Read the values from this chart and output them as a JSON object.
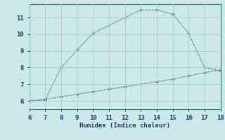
{
  "xlabel": "Humidex (Indice chaleur)",
  "ylabel": "",
  "background_color": "#cce8e8",
  "line_color": "#2e7b6e",
  "grid_color": "#aacfcf",
  "xlim": [
    6,
    18
  ],
  "ylim": [
    5.5,
    11.8
  ],
  "xticks": [
    6,
    7,
    8,
    9,
    10,
    11,
    12,
    13,
    14,
    15,
    16,
    17,
    18
  ],
  "yticks": [
    6,
    7,
    8,
    9,
    10,
    11
  ],
  "line1_x": [
    6,
    7,
    8,
    9,
    10,
    12,
    13,
    14,
    15,
    16,
    17,
    18
  ],
  "line1_y": [
    6.0,
    6.05,
    8.0,
    9.05,
    10.05,
    11.0,
    11.45,
    11.45,
    11.2,
    10.05,
    8.0,
    7.8
  ],
  "line2_x": [
    6,
    7,
    8,
    9,
    10,
    11,
    12,
    13,
    14,
    15,
    16,
    17,
    18
  ],
  "line2_y": [
    6.0,
    6.1,
    6.25,
    6.4,
    6.55,
    6.7,
    6.85,
    7.0,
    7.15,
    7.3,
    7.5,
    7.7,
    7.85
  ]
}
